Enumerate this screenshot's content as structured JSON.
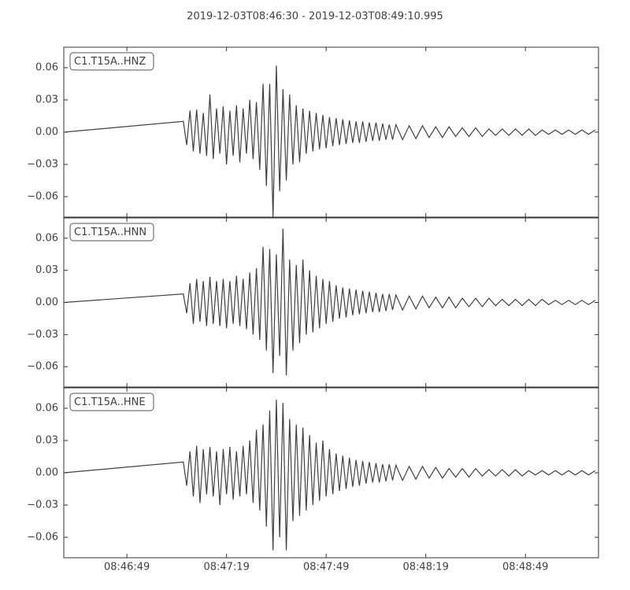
{
  "title": "2019-12-03T08:46:30  -  2019-12-03T08:49:10.995",
  "chart_data": [
    {
      "type": "line",
      "x": [
        0,
        36,
        37,
        38,
        39,
        40,
        41,
        42,
        43,
        44,
        45,
        46,
        47,
        48,
        49,
        50,
        51,
        52,
        53,
        54,
        55,
        56,
        57,
        58,
        59,
        60,
        61,
        62,
        63,
        64,
        65,
        66,
        67,
        68,
        69,
        70,
        71,
        72,
        73,
        74,
        75,
        76,
        77,
        78,
        79,
        80,
        81,
        82,
        83,
        84,
        85,
        86,
        87,
        88,
        89,
        90,
        91,
        92,
        93,
        94,
        95,
        96,
        97,
        98,
        99,
        100,
        102,
        104,
        106,
        108,
        110,
        112,
        114,
        116,
        118,
        120,
        122,
        124,
        126,
        128,
        130,
        132,
        134,
        136,
        138,
        140,
        142,
        144,
        146,
        148,
        150,
        152,
        154,
        156,
        158,
        160
      ],
      "series": [
        {
          "name": "C1.T15A..HNZ",
          "color": "#404040",
          "values": [
            0,
            0.01,
            -0.012,
            0.02,
            -0.018,
            0.021,
            -0.02,
            0.018,
            -0.022,
            0.035,
            -0.025,
            0.022,
            -0.02,
            0.024,
            -0.03,
            0.02,
            -0.022,
            0.025,
            -0.028,
            0.022,
            -0.02,
            0.03,
            -0.025,
            0.028,
            -0.035,
            0.045,
            -0.05,
            0.045,
            -0.079,
            0.062,
            -0.055,
            0.04,
            -0.045,
            0.035,
            -0.03,
            0.025,
            -0.028,
            0.022,
            -0.02,
            0.02,
            -0.018,
            0.018,
            -0.016,
            0.016,
            -0.015,
            0.014,
            -0.013,
            0.013,
            -0.012,
            0.012,
            -0.011,
            0.011,
            -0.01,
            0.01,
            -0.01,
            0.01,
            -0.009,
            0.009,
            -0.008,
            0.009,
            -0.008,
            0.008,
            -0.007,
            0.007,
            -0.007,
            0.007,
            -0.007,
            0.006,
            -0.006,
            0.006,
            -0.005,
            0.005,
            -0.005,
            0.005,
            -0.004,
            0.004,
            -0.004,
            0.004,
            -0.004,
            0.003,
            -0.003,
            0.003,
            -0.003,
            0.003,
            -0.003,
            0.003,
            -0.003,
            0.002,
            -0.002,
            0.002,
            -0.002,
            0.002,
            -0.002,
            0.002,
            -0.002,
            0.002
          ]
        }
      ],
      "xlim": [
        0,
        160.995
      ],
      "ylim": [
        -0.079,
        0.079
      ],
      "yticks": [
        {
          "value": -0.06,
          "label": "−0.06"
        },
        {
          "value": -0.03,
          "label": "−0.03"
        },
        {
          "value": 0,
          "label": "0.00"
        },
        {
          "value": 0.03,
          "label": "0.03"
        },
        {
          "value": 0.06,
          "label": "0.06"
        }
      ]
    },
    {
      "type": "line",
      "x": [
        0,
        36,
        37,
        38,
        39,
        40,
        41,
        42,
        43,
        44,
        45,
        46,
        47,
        48,
        49,
        50,
        51,
        52,
        53,
        54,
        55,
        56,
        57,
        58,
        59,
        60,
        61,
        62,
        63,
        64,
        65,
        66,
        67,
        68,
        69,
        70,
        71,
        72,
        73,
        74,
        75,
        76,
        77,
        78,
        79,
        80,
        81,
        82,
        83,
        84,
        85,
        86,
        87,
        88,
        89,
        90,
        91,
        92,
        93,
        94,
        95,
        96,
        97,
        98,
        99,
        100,
        102,
        104,
        106,
        108,
        110,
        112,
        114,
        116,
        118,
        120,
        122,
        124,
        126,
        128,
        130,
        132,
        134,
        136,
        138,
        140,
        142,
        144,
        146,
        148,
        150,
        152,
        154,
        156,
        158,
        160
      ],
      "series": [
        {
          "name": "C1.T15A..HNN",
          "color": "#404040",
          "values": [
            0,
            0.008,
            -0.01,
            0.018,
            -0.02,
            0.022,
            -0.018,
            0.02,
            -0.022,
            0.024,
            -0.02,
            0.02,
            -0.022,
            0.022,
            -0.024,
            0.02,
            -0.02,
            0.025,
            -0.022,
            0.022,
            -0.025,
            0.028,
            -0.03,
            0.032,
            -0.035,
            0.052,
            -0.045,
            0.05,
            -0.066,
            0.045,
            -0.05,
            0.069,
            -0.068,
            0.04,
            -0.045,
            0.035,
            -0.038,
            0.04,
            -0.03,
            0.03,
            -0.028,
            0.025,
            -0.024,
            0.022,
            -0.02,
            0.02,
            -0.018,
            0.016,
            -0.015,
            0.014,
            -0.014,
            0.013,
            -0.012,
            0.012,
            -0.011,
            0.011,
            -0.01,
            0.01,
            -0.009,
            0.009,
            -0.009,
            0.008,
            -0.008,
            0.008,
            -0.007,
            0.007,
            -0.007,
            0.006,
            -0.006,
            0.006,
            -0.005,
            0.005,
            -0.005,
            0.005,
            -0.005,
            0.004,
            -0.004,
            0.004,
            -0.004,
            0.004,
            -0.003,
            0.003,
            -0.003,
            0.003,
            -0.003,
            0.003,
            -0.003,
            0.003,
            -0.002,
            0.002,
            -0.002,
            0.002,
            -0.002,
            0.002,
            -0.002,
            0.002
          ]
        }
      ],
      "xlim": [
        0,
        160.995
      ],
      "ylim": [
        -0.079,
        0.079
      ],
      "yticks": [
        {
          "value": -0.06,
          "label": "−0.06"
        },
        {
          "value": -0.03,
          "label": "−0.03"
        },
        {
          "value": 0,
          "label": "0.00"
        },
        {
          "value": 0.03,
          "label": "0.03"
        },
        {
          "value": 0.06,
          "label": "0.06"
        }
      ]
    },
    {
      "type": "line",
      "x": [
        0,
        36,
        37,
        38,
        39,
        40,
        41,
        42,
        43,
        44,
        45,
        46,
        47,
        48,
        49,
        50,
        51,
        52,
        53,
        54,
        55,
        56,
        57,
        58,
        59,
        60,
        61,
        62,
        63,
        64,
        65,
        66,
        67,
        68,
        69,
        70,
        71,
        72,
        73,
        74,
        75,
        76,
        77,
        78,
        79,
        80,
        81,
        82,
        83,
        84,
        85,
        86,
        87,
        88,
        89,
        90,
        91,
        92,
        93,
        94,
        95,
        96,
        97,
        98,
        99,
        100,
        102,
        104,
        106,
        108,
        110,
        112,
        114,
        116,
        118,
        120,
        122,
        124,
        126,
        128,
        130,
        132,
        134,
        136,
        138,
        140,
        142,
        144,
        146,
        148,
        150,
        152,
        154,
        156,
        158,
        160
      ],
      "series": [
        {
          "name": "C1.T15A..HNE",
          "color": "#404040",
          "values": [
            0,
            0.01,
            -0.012,
            0.02,
            -0.022,
            0.025,
            -0.028,
            0.022,
            -0.02,
            0.024,
            -0.022,
            0.02,
            -0.03,
            0.022,
            -0.02,
            0.024,
            -0.025,
            0.02,
            -0.022,
            0.025,
            -0.02,
            0.03,
            -0.028,
            0.04,
            -0.035,
            0.045,
            -0.05,
            0.058,
            -0.072,
            0.068,
            -0.06,
            0.065,
            -0.072,
            0.05,
            -0.045,
            0.045,
            -0.04,
            0.042,
            -0.035,
            0.035,
            -0.03,
            0.028,
            -0.026,
            0.03,
            -0.022,
            0.022,
            -0.02,
            0.018,
            -0.017,
            0.016,
            -0.015,
            0.014,
            -0.013,
            0.012,
            -0.012,
            0.011,
            -0.01,
            0.01,
            -0.009,
            0.009,
            -0.009,
            0.008,
            -0.008,
            0.008,
            -0.007,
            0.007,
            -0.007,
            0.006,
            -0.006,
            0.006,
            -0.005,
            0.005,
            -0.005,
            0.004,
            -0.004,
            0.004,
            -0.004,
            0.004,
            -0.003,
            0.003,
            -0.003,
            0.003,
            -0.003,
            0.003,
            -0.003,
            0.002,
            -0.002,
            0.002,
            -0.002,
            0.002,
            -0.002,
            0.002,
            -0.002,
            0.002,
            -0.002,
            0.002
          ]
        }
      ],
      "xlim": [
        0,
        160.995
      ],
      "ylim": [
        -0.079,
        0.079
      ],
      "yticks": [
        {
          "value": -0.06,
          "label": "−0.06"
        },
        {
          "value": -0.03,
          "label": "−0.03"
        },
        {
          "value": 0,
          "label": "0.00"
        },
        {
          "value": 0.03,
          "label": "0.03"
        },
        {
          "value": 0.06,
          "label": "0.06"
        }
      ],
      "xticks": [
        {
          "value": 19,
          "label": "08:46:49"
        },
        {
          "value": 49,
          "label": "08:47:19"
        },
        {
          "value": 79,
          "label": "08:47:49"
        },
        {
          "value": 109,
          "label": "08:48:19"
        },
        {
          "value": 139,
          "label": "08:48:49"
        }
      ]
    }
  ]
}
